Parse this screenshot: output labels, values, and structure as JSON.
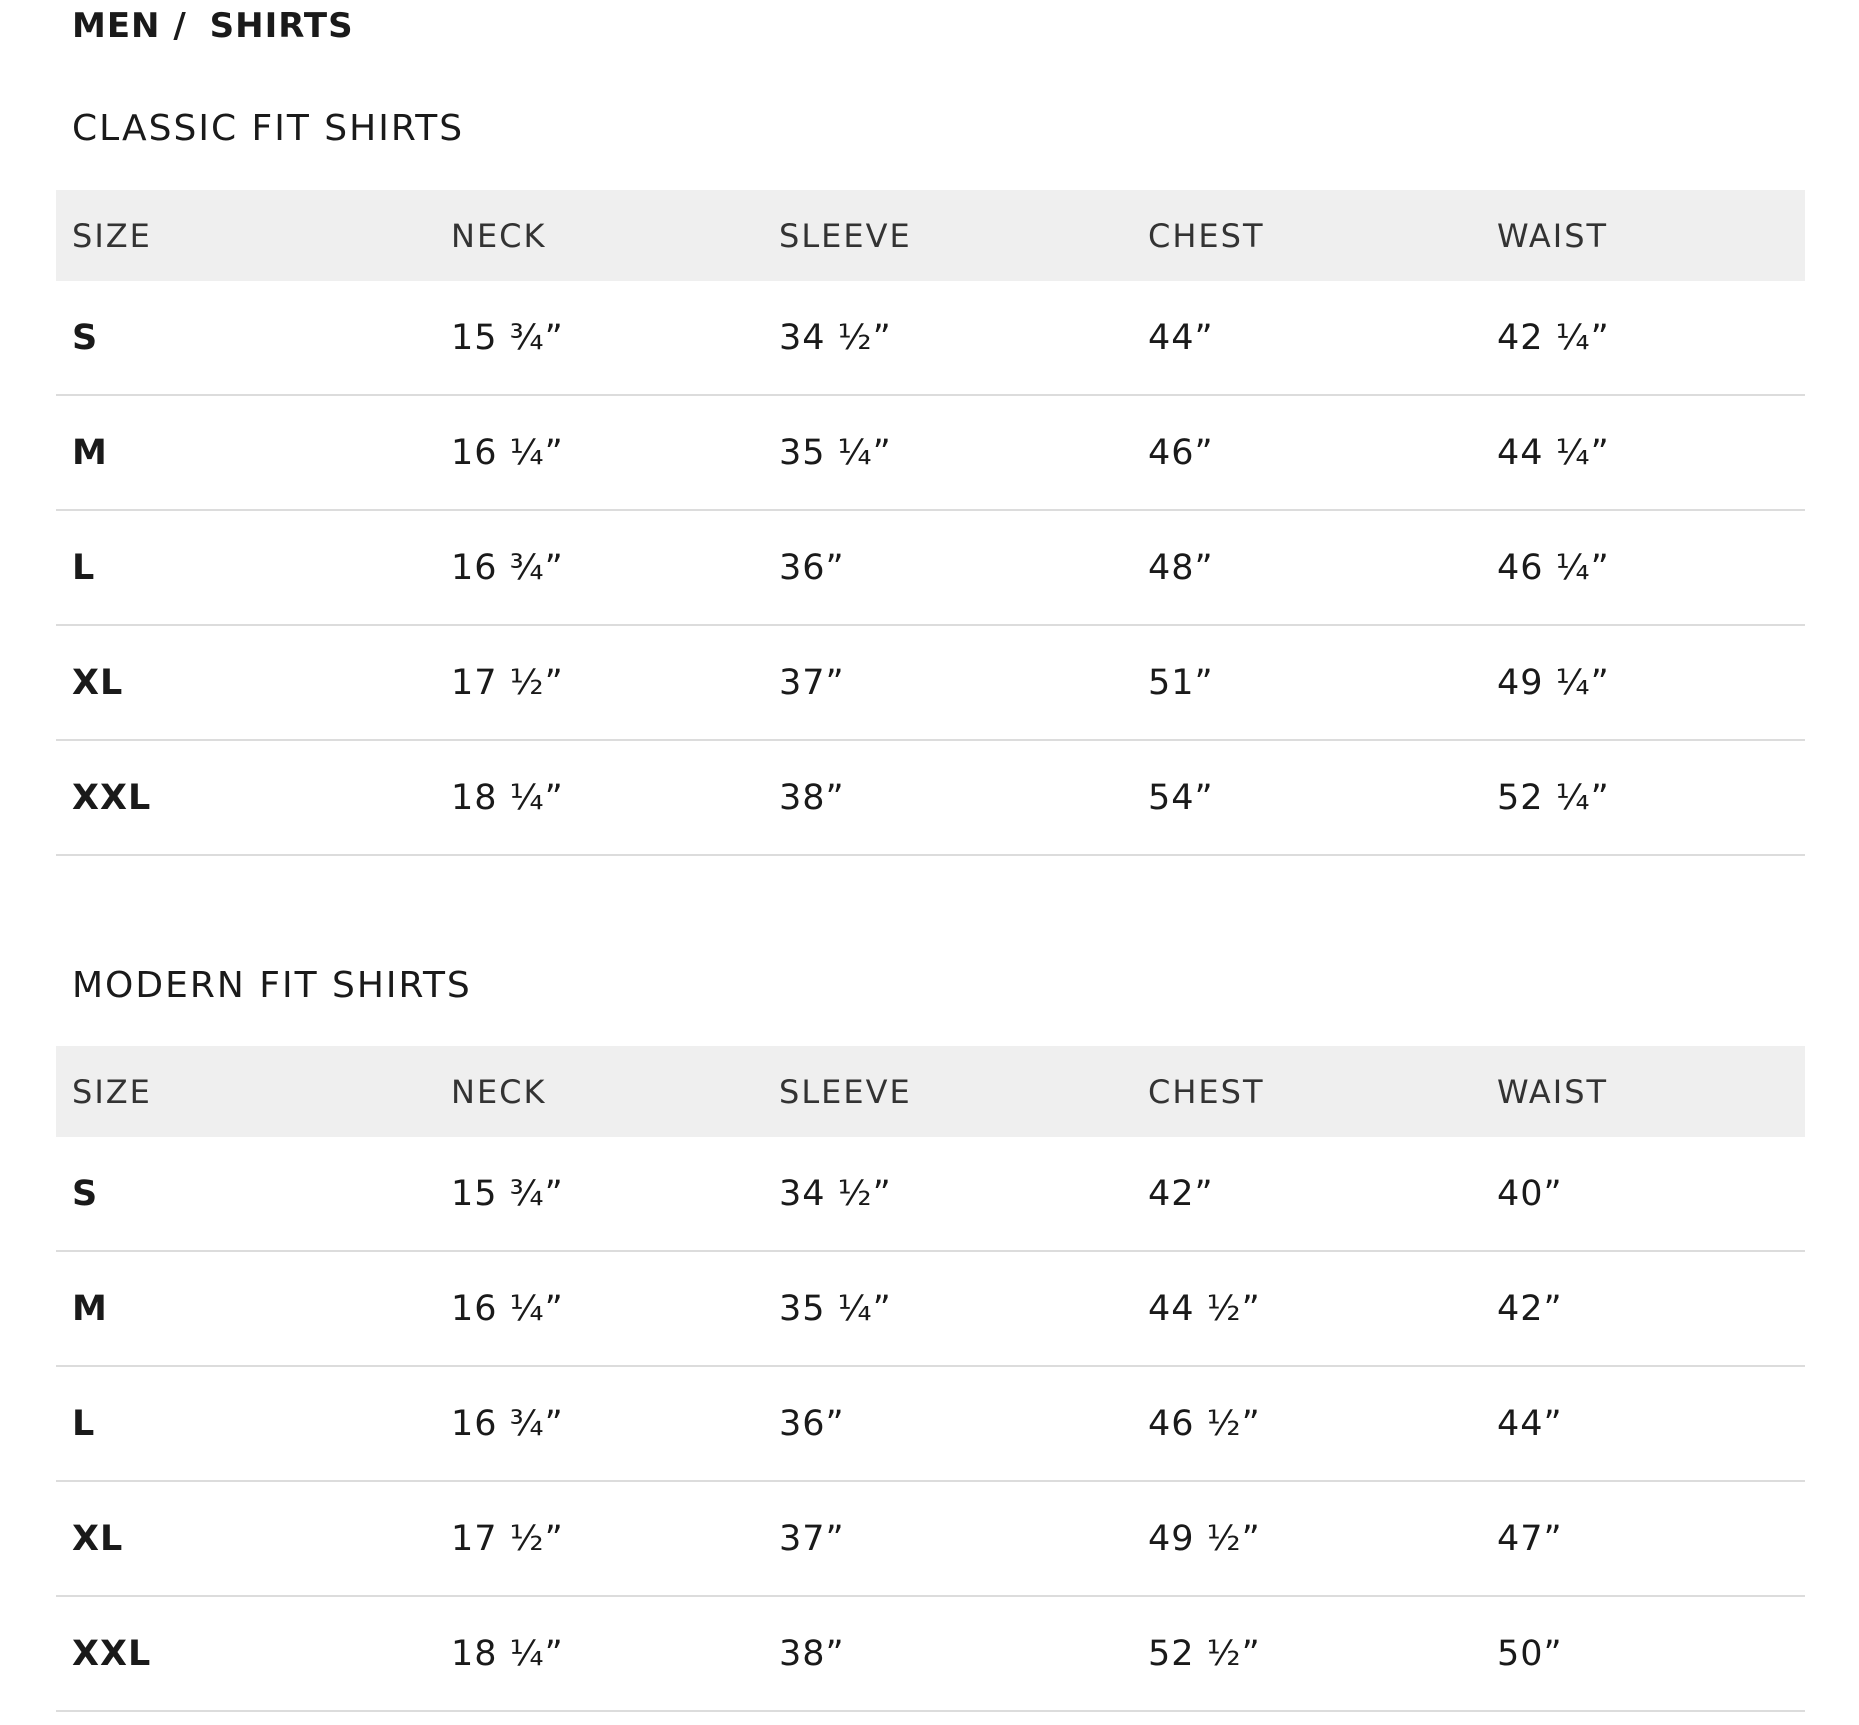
{
  "breadcrumb": [
    "MEN /",
    "SHIRTS"
  ],
  "columns": [
    "SIZE",
    "NECK",
    "SLEEVE",
    "CHEST",
    "WAIST"
  ],
  "tables": [
    {
      "title": "CLASSIC FIT SHIRTS",
      "rows": [
        [
          "S",
          "15 ¾”",
          "34 ½”",
          "44”",
          "42 ¼”"
        ],
        [
          "M",
          "16 ¼”",
          "35 ¼”",
          "46”",
          "44 ¼”"
        ],
        [
          "L",
          "16 ¾”",
          "36”",
          "48”",
          "46 ¼”"
        ],
        [
          "XL",
          "17 ½”",
          "37”",
          "51”",
          "49 ¼”"
        ],
        [
          "XXL",
          "18 ¼”",
          "38”",
          "54”",
          "52 ¼”"
        ]
      ]
    },
    {
      "title": "MODERN FIT SHIRTS",
      "rows": [
        [
          "S",
          "15 ¾”",
          "34 ½”",
          "42”",
          "40”"
        ],
        [
          "M",
          "16 ¼”",
          "35 ¼”",
          "44 ½”",
          "42”"
        ],
        [
          "L",
          "16 ¾”",
          "36”",
          "46 ½”",
          "44”"
        ],
        [
          "XL",
          "17 ½”",
          "37”",
          "49 ½”",
          "47”"
        ],
        [
          "XXL",
          "18 ¼”",
          "38”",
          "52 ½”",
          "50”"
        ]
      ]
    }
  ]
}
